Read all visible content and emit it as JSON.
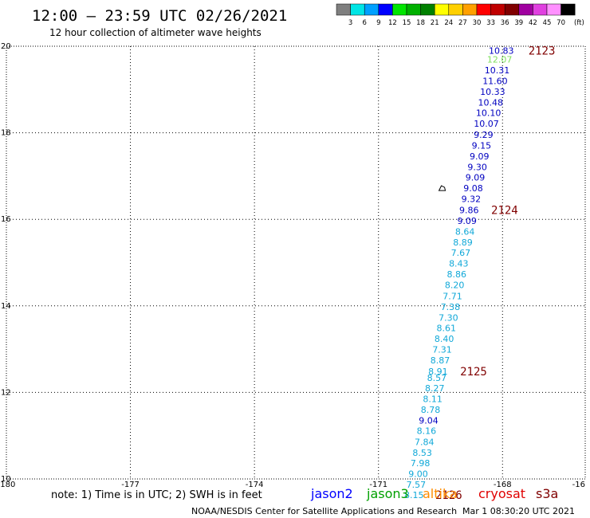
{
  "header": {
    "title": "12:00 – 23:59 UTC 02/26/2021",
    "subtitle": "12 hour collection of altimeter wave heights"
  },
  "legend": {
    "bins": [
      {
        "label": "3",
        "color": "#7f7f7f"
      },
      {
        "label": "6",
        "color": "#00e5e5"
      },
      {
        "label": "9",
        "color": "#00a0ff"
      },
      {
        "label": "12",
        "color": "#0000ff"
      },
      {
        "label": "15",
        "color": "#00e600"
      },
      {
        "label": "18",
        "color": "#00b000"
      },
      {
        "label": "21",
        "color": "#008000"
      },
      {
        "label": "24",
        "color": "#ffff00"
      },
      {
        "label": "27",
        "color": "#ffd000"
      },
      {
        "label": "30",
        "color": "#ffa000"
      },
      {
        "label": "33",
        "color": "#ff0000"
      },
      {
        "label": "36",
        "color": "#c00000"
      },
      {
        "label": "39",
        "color": "#800000"
      },
      {
        "label": "42",
        "color": "#a000a0"
      },
      {
        "label": "45",
        "color": "#e040e0"
      },
      {
        "label": "70",
        "color": "#ff90ff"
      },
      {
        "label": "",
        "color": "#000000"
      }
    ],
    "unit": "(ft)"
  },
  "footer": {
    "note": "note: 1) Time is in UTC; 2) SWH is in feet",
    "missions": [
      {
        "name": "jason2",
        "color": "#0000ff"
      },
      {
        "name": "jason3",
        "color": "#00a000"
      },
      {
        "name": "altika",
        "color": "#ff8c00"
      },
      {
        "name": "cryosat",
        "color": "#e00000"
      },
      {
        "name": "s3a",
        "color": "#800000"
      }
    ],
    "credit": "NOAA/NESDIS Center for Satellite Applications and Research",
    "timestamp": "Mar  1 08:30:20 UTC 2021"
  },
  "chart_data": {
    "type": "scatter",
    "title": "12:00 – 23:59 UTC 02/26/2021",
    "subtitle": "12 hour collection of altimeter wave heights",
    "xlim": [
      -180,
      -166
    ],
    "ylim": [
      10,
      20
    ],
    "x_ticks": [
      "-180",
      "-177",
      "-174",
      "-171",
      "-168",
      "-16"
    ],
    "y_ticks": [
      "10",
      "12",
      "14",
      "16",
      "18",
      "20"
    ],
    "grid": true,
    "units": "(ft)",
    "colors": {
      "dark_blue": "#0000c0",
      "light_green": "#80e060",
      "cyan": "#10a8d8"
    },
    "points": [
      {
        "x": -168.03,
        "y": 19.9,
        "label": "10.83",
        "color": "#0000c0"
      },
      {
        "x": -168.07,
        "y": 19.7,
        "label": "12.07",
        "color": "#80e060"
      },
      {
        "x": -168.13,
        "y": 19.45,
        "label": "10.31",
        "color": "#0000c0"
      },
      {
        "x": -168.18,
        "y": 19.2,
        "label": "11.60",
        "color": "#0000c0"
      },
      {
        "x": -168.24,
        "y": 18.95,
        "label": "10.33",
        "color": "#0000c0"
      },
      {
        "x": -168.29,
        "y": 18.7,
        "label": "10.48",
        "color": "#0000c0"
      },
      {
        "x": -168.34,
        "y": 18.46,
        "label": "10.10",
        "color": "#0000c0"
      },
      {
        "x": -168.39,
        "y": 18.21,
        "label": "10.07",
        "color": "#0000c0"
      },
      {
        "x": -168.46,
        "y": 17.96,
        "label": "9.29",
        "color": "#0000c0"
      },
      {
        "x": -168.51,
        "y": 17.71,
        "label": "9.15",
        "color": "#0000c0"
      },
      {
        "x": -168.56,
        "y": 17.46,
        "label": "9.09",
        "color": "#0000c0"
      },
      {
        "x": -168.61,
        "y": 17.21,
        "label": "9.30",
        "color": "#0000c0"
      },
      {
        "x": -168.66,
        "y": 16.97,
        "label": "9.09",
        "color": "#0000c0"
      },
      {
        "x": -168.71,
        "y": 16.72,
        "label": "9.08",
        "color": "#0000c0"
      },
      {
        "x": -168.76,
        "y": 16.47,
        "label": "9.32",
        "color": "#0000c0"
      },
      {
        "x": -168.81,
        "y": 16.22,
        "label": "9.86",
        "color": "#0000c0"
      },
      {
        "x": -168.86,
        "y": 15.97,
        "label": "9.09",
        "color": "#0000c0"
      },
      {
        "x": -168.91,
        "y": 15.72,
        "label": "8.64",
        "color": "#10a8d8"
      },
      {
        "x": -168.96,
        "y": 15.47,
        "label": "8.89",
        "color": "#10a8d8"
      },
      {
        "x": -169.01,
        "y": 15.23,
        "label": "7.67",
        "color": "#10a8d8"
      },
      {
        "x": -169.06,
        "y": 14.98,
        "label": "8.43",
        "color": "#10a8d8"
      },
      {
        "x": -169.11,
        "y": 14.73,
        "label": "8.86",
        "color": "#10a8d8"
      },
      {
        "x": -169.16,
        "y": 14.48,
        "label": "8.20",
        "color": "#10a8d8"
      },
      {
        "x": -169.21,
        "y": 14.23,
        "label": "7.71",
        "color": "#10a8d8"
      },
      {
        "x": -169.26,
        "y": 13.98,
        "label": "7.38",
        "color": "#10a8d8"
      },
      {
        "x": -169.31,
        "y": 13.73,
        "label": "7.30",
        "color": "#10a8d8"
      },
      {
        "x": -169.36,
        "y": 13.49,
        "label": "8.61",
        "color": "#10a8d8"
      },
      {
        "x": -169.41,
        "y": 13.24,
        "label": "8.40",
        "color": "#10a8d8"
      },
      {
        "x": -169.46,
        "y": 12.99,
        "label": "7.31",
        "color": "#10a8d8"
      },
      {
        "x": -169.51,
        "y": 12.74,
        "label": "8.87",
        "color": "#10a8d8"
      },
      {
        "x": -169.56,
        "y": 12.49,
        "label": "8.91",
        "color": "#10a8d8"
      },
      {
        "x": -169.59,
        "y": 12.34,
        "label": "8.57",
        "color": "#10a8d8"
      },
      {
        "x": -169.64,
        "y": 12.1,
        "label": "8.27",
        "color": "#10a8d8"
      },
      {
        "x": -169.69,
        "y": 11.85,
        "label": "8.11",
        "color": "#10a8d8"
      },
      {
        "x": -169.74,
        "y": 11.6,
        "label": "8.78",
        "color": "#10a8d8"
      },
      {
        "x": -169.79,
        "y": 11.35,
        "label": "9.04",
        "color": "#0000c0"
      },
      {
        "x": -169.84,
        "y": 11.11,
        "label": "8.16",
        "color": "#10a8d8"
      },
      {
        "x": -169.89,
        "y": 10.86,
        "label": "7.84",
        "color": "#10a8d8"
      },
      {
        "x": -169.94,
        "y": 10.61,
        "label": "8.53",
        "color": "#10a8d8"
      },
      {
        "x": -169.99,
        "y": 10.37,
        "label": "7.98",
        "color": "#10a8d8"
      },
      {
        "x": -170.04,
        "y": 10.12,
        "label": "9.00",
        "color": "#10a8d8"
      },
      {
        "x": -170.09,
        "y": 9.87,
        "label": "7.57",
        "color": "#10a8d8"
      },
      {
        "x": -170.14,
        "y": 9.63,
        "label": "8.15",
        "color": "#10a8d8"
      }
    ],
    "pass_labels": [
      {
        "x": -167.05,
        "y": 19.9,
        "text": "2123"
      },
      {
        "x": -167.95,
        "y": 16.22,
        "text": "2124"
      },
      {
        "x": -168.7,
        "y": 12.49,
        "text": "2125"
      },
      {
        "x": -169.3,
        "y": 9.63,
        "text": "2126"
      }
    ],
    "island_marker": {
      "x": -169.46,
      "y": 16.72
    }
  }
}
